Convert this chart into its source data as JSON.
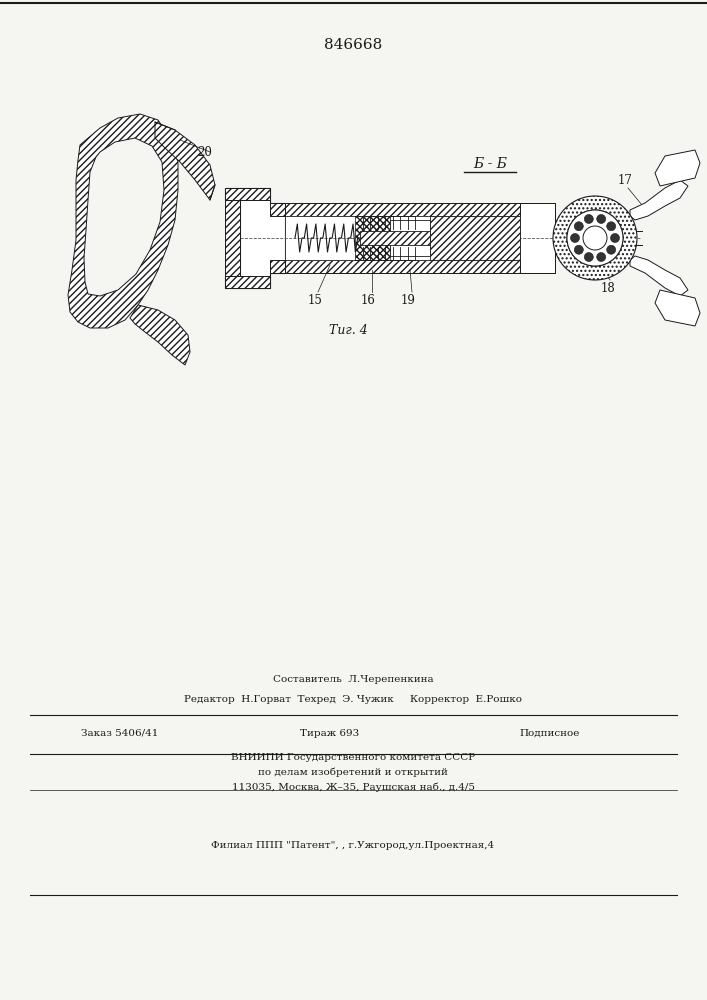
{
  "title": "846668",
  "fig_label": "Τиг. 4",
  "section_label": "Б - Б",
  "bg_color": "#f5f5f2",
  "line_color": "#1a1a1a",
  "footer_line1": "Составитель  Л.Черепенкина",
  "footer_line2": "Редактор  Н.Горват  Техред  Э. Чужик     Корректор  Е.Рошко",
  "footer_line3a": "Заказ 5406/41",
  "footer_line3b": "Тираж 693",
  "footer_line3c": "Подписное",
  "footer_line4": "ВНИИПИ Государственного комитета СССР",
  "footer_line5": "по делам изобретений и открытий",
  "footer_line6": "113035, Москва, Ж–35, Раушская наб., д.4/5",
  "footer_line7": "Филиал ППП \"Патент\", , г.Ужгород,ул.Проектная,4"
}
